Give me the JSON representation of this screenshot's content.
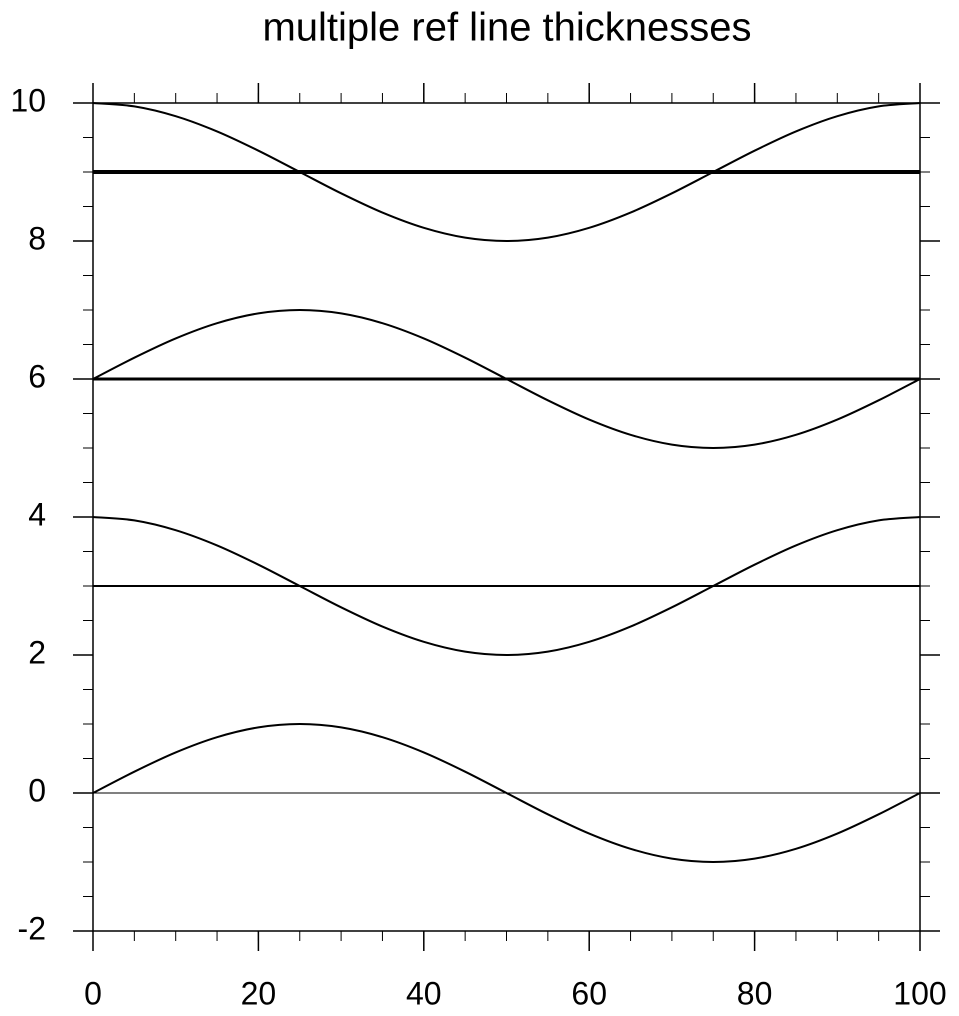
{
  "chart_data": {
    "type": "line",
    "title": "multiple ref line thicknesses",
    "x": [
      0,
      5,
      10,
      15,
      20,
      25,
      30,
      35,
      40,
      45,
      50,
      55,
      60,
      65,
      70,
      75,
      80,
      85,
      90,
      95,
      100
    ],
    "series": [
      {
        "color": "#000000",
        "values": [
          0,
          0.309,
          0.588,
          0.809,
          0.951,
          1,
          0.951,
          0.809,
          0.588,
          0.309,
          0,
          -0.309,
          -0.588,
          -0.809,
          -0.951,
          -1,
          -0.951,
          -0.809,
          -0.588,
          -0.309,
          0
        ]
      },
      {
        "color": "#000000",
        "values": [
          4,
          3.951,
          3.809,
          3.588,
          3.309,
          3,
          2.691,
          2.412,
          2.191,
          2.049,
          2,
          2.049,
          2.191,
          2.412,
          2.691,
          3,
          3.309,
          3.588,
          3.809,
          3.951,
          4
        ]
      },
      {
        "color": "#000000",
        "values": [
          6,
          6.309,
          6.588,
          6.809,
          6.951,
          7,
          6.951,
          6.809,
          6.588,
          6.309,
          6,
          5.691,
          5.412,
          5.191,
          5.049,
          5,
          5.049,
          5.191,
          5.412,
          5.691,
          6
        ]
      },
      {
        "color": "#000000",
        "values": [
          10,
          9.951,
          9.809,
          9.588,
          9.309,
          9,
          8.691,
          8.412,
          8.191,
          8.049,
          8,
          8.049,
          8.191,
          8.412,
          8.691,
          9,
          9.309,
          9.588,
          9.809,
          9.951,
          10
        ]
      }
    ],
    "ref_lines": [
      {
        "value": 0,
        "thickness": 1
      },
      {
        "value": 3,
        "thickness": 2
      },
      {
        "value": 6,
        "thickness": 3
      },
      {
        "value": 9,
        "thickness": 4
      }
    ],
    "xlim": [
      0,
      100
    ],
    "ylim": [
      -2,
      10
    ],
    "xticks": [
      0,
      20,
      40,
      60,
      80,
      100
    ],
    "yticks": [
      -2,
      0,
      2,
      4,
      6,
      8,
      10
    ],
    "xminor_step": 5,
    "yminor_step": 0.5
  }
}
